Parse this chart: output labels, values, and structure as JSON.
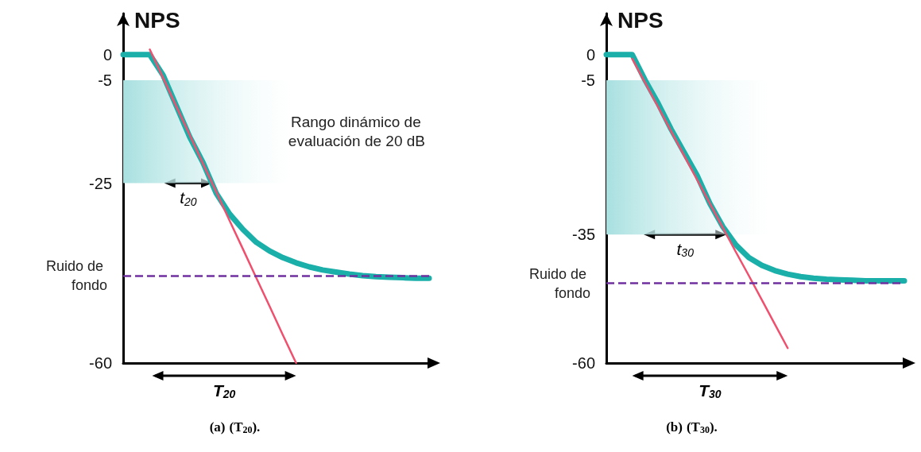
{
  "chart_data": [
    {
      "type": "line",
      "title": "(a) (T$_{20}$).",
      "ylabel": "NPS",
      "categories": [
        null,
        null,
        null,
        null,
        null,
        null,
        null,
        null,
        null,
        null,
        null,
        null,
        null,
        null,
        null,
        null,
        null,
        null,
        null,
        null,
        null,
        null,
        null,
        null
      ],
      "ylim": [
        -60,
        8
      ],
      "yticks": [
        0,
        -5,
        -25,
        -60
      ],
      "tick_labels": "y",
      "grid": false,
      "marker": "none",
      "series": [
        {
          "color": "#1aafa9",
          "values": [
            0,
            0,
            0,
            -4,
            -10,
            -16,
            -21,
            -27,
            -31,
            -34,
            -36.5,
            -38.2,
            -39.5,
            -40.5,
            -41.3,
            -41.9,
            -42.3,
            -42.7,
            -43,
            -43.2,
            -43.3,
            -43.4,
            -43.5,
            -43.5
          ]
        },
        {
          "color": "#f0506e",
          "values": [
            null,
            null,
            1,
            -4.5,
            -10.1,
            -15.6,
            -21.2,
            -26.7,
            -32.3,
            -37.8,
            -43.4,
            -48.9,
            -54.5,
            -60,
            null,
            null,
            null,
            null,
            null,
            null,
            null,
            null,
            null,
            null
          ]
        }
      ],
      "ref_lines": [
        {
          "axis": "y",
          "value": -43,
          "label": "Ruido de fondo",
          "color": "#7030a0",
          "line_style": "dashed"
        }
      ],
      "bands": [
        {
          "axis": "y",
          "from": -25,
          "to": -5,
          "label": "Rango dinámico de evaluación de 20 dB",
          "color": "#a8e0e0"
        }
      ],
      "annotations": [
        {
          "text": "t$_{20}$",
          "y": -25
        },
        "T$_{20}$"
      ]
    },
    {
      "type": "line",
      "title": "(b) (T$_{30}$).",
      "ylabel": "NPS",
      "categories": [
        null,
        null,
        null,
        null,
        null,
        null,
        null,
        null,
        null,
        null,
        null,
        null,
        null,
        null,
        null,
        null,
        null,
        null,
        null,
        null,
        null,
        null,
        null,
        null
      ],
      "ylim": [
        -60,
        8
      ],
      "yticks": [
        0,
        -5,
        -35,
        -60
      ],
      "tick_labels": "y",
      "grid": false,
      "marker": "none",
      "series": [
        {
          "color": "#1aafa9",
          "values": [
            0,
            0,
            0,
            -5,
            -9.5,
            -14.5,
            -19,
            -23.5,
            -29,
            -33.5,
            -37,
            -39.5,
            -41,
            -42,
            -42.7,
            -43.2,
            -43.5,
            -43.7,
            -43.8,
            -43.9,
            -44,
            -44,
            -44,
            -44
          ]
        },
        {
          "color": "#f0506e",
          "values": [
            null,
            null,
            -0.8,
            -5.5,
            -10.2,
            -14.9,
            -19.6,
            -24.3,
            -29,
            -33.7,
            -38.4,
            -43,
            -47.7,
            -52.4,
            -57.1,
            null,
            null,
            null,
            null,
            null,
            null,
            null,
            null,
            null
          ]
        }
      ],
      "ref_lines": [
        {
          "axis": "y",
          "value": -44.5,
          "label": "Ruido de fondo",
          "color": "#7030a0",
          "line_style": "dashed"
        }
      ],
      "bands": [
        {
          "axis": "y",
          "from": -35,
          "to": -5,
          "color": "#a8e0e0"
        }
      ],
      "annotations": [
        {
          "text": "t$_{30}$",
          "y": -35
        },
        "T$_{30}$"
      ]
    }
  ]
}
